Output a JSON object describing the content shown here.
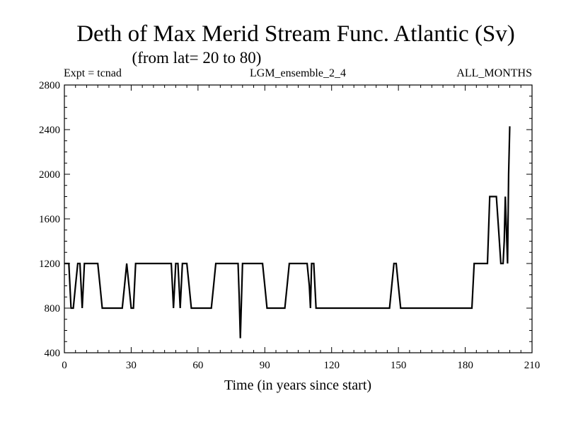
{
  "chart_data": {
    "type": "line",
    "title": "Deth of Max Merid Stream Func. Atlantic (Sv)",
    "subtitle": "(from lat= 20 to 80)",
    "header_left": "Expt = tcnad",
    "header_center": "LGM_ensemble_2_4",
    "header_right": "ALL_MONTHS",
    "xlabel": "Time (in years since start)",
    "ylabel": "",
    "xlim": [
      0,
      210
    ],
    "ylim": [
      400,
      2800
    ],
    "x_ticks": [
      0,
      30,
      60,
      90,
      120,
      150,
      180,
      210
    ],
    "y_ticks": [
      400,
      800,
      1200,
      1600,
      2000,
      2400,
      2800
    ],
    "grid": false,
    "series": [
      {
        "x": [
          0,
          2,
          3,
          4,
          5,
          6,
          7,
          7.5,
          8,
          9,
          15,
          16,
          17,
          26,
          27,
          28,
          29,
          30,
          31,
          32,
          48,
          48.5,
          49,
          50,
          51,
          51.5,
          52,
          53,
          55,
          56,
          57,
          66,
          67,
          68,
          78,
          78.5,
          79,
          80,
          89,
          90,
          91,
          99,
          100,
          101,
          109,
          110,
          110.5,
          111,
          112,
          113,
          146,
          147,
          148,
          149,
          150,
          151,
          183,
          184,
          190,
          191,
          194,
          195,
          196,
          197,
          197.5,
          198,
          198.5,
          199,
          199.5,
          200
        ],
        "y": [
          1200,
          1200,
          800,
          800,
          1000,
          1200,
          1200,
          1000,
          800,
          1200,
          1200,
          1000,
          800,
          800,
          1000,
          1200,
          1000,
          800,
          800,
          1200,
          1200,
          1000,
          800,
          1200,
          1200,
          1000,
          800,
          1200,
          1200,
          1000,
          800,
          800,
          1000,
          1200,
          1200,
          900,
          530,
          1200,
          1200,
          1000,
          800,
          800,
          1000,
          1200,
          1200,
          1000,
          800,
          1200,
          1200,
          800,
          800,
          1000,
          1200,
          1200,
          1000,
          800,
          800,
          1200,
          1200,
          1800,
          1800,
          1500,
          1200,
          1200,
          1400,
          1800,
          1500,
          1200,
          2000,
          2430
        ]
      }
    ]
  }
}
